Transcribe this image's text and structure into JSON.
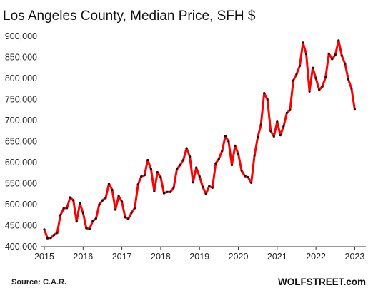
{
  "chart_data": {
    "type": "line",
    "title": "Los Angeles County, Median Price, SFH $",
    "source": "Source: C.A.R.",
    "brand": "WOLFSTREET.com",
    "xlabel": "",
    "ylabel": "",
    "ylim": [
      400000,
      900000
    ],
    "xlim": [
      2015,
      2023.25
    ],
    "y_ticks": [
      400000,
      450000,
      500000,
      550000,
      600000,
      650000,
      700000,
      750000,
      800000,
      850000,
      900000
    ],
    "y_tick_labels": [
      "400,000",
      "450,000",
      "500,000",
      "550,000",
      "600,000",
      "650,000",
      "700,000",
      "750,000",
      "800,000",
      "850,000",
      "900,000"
    ],
    "x_ticks": [
      2015,
      2016,
      2017,
      2018,
      2019,
      2020,
      2021,
      2022,
      2023
    ],
    "x_tick_labels": [
      "2015",
      "2016",
      "2017",
      "2018",
      "2019",
      "2020",
      "2021",
      "2022",
      "2023"
    ],
    "grid": false,
    "line_color": "#ff0000",
    "marker_color": "#111111",
    "series": [
      {
        "start": "2015-01",
        "frequency": "monthly",
        "values": [
          441000,
          420000,
          421000,
          428000,
          433000,
          475000,
          491000,
          492000,
          517000,
          510000,
          460000,
          503000,
          480000,
          444000,
          442000,
          461000,
          467000,
          500000,
          510000,
          516000,
          550000,
          535000,
          488000,
          520000,
          507000,
          470000,
          466000,
          481000,
          492000,
          548000,
          567000,
          570000,
          606000,
          585000,
          532000,
          577000,
          565000,
          527000,
          530000,
          530000,
          540000,
          584000,
          594000,
          606000,
          634000,
          614000,
          553000,
          588000,
          567000,
          542000,
          525000,
          544000,
          540000,
          598000,
          609000,
          628000,
          663000,
          650000,
          594000,
          640000,
          620000,
          581000,
          568000,
          565000,
          552000,
          617000,
          660000,
          690000,
          765000,
          750000,
          675000,
          662000,
          697000,
          665000,
          686000,
          718000,
          725000,
          795000,
          810000,
          830000,
          885000,
          858000,
          769000,
          825000,
          800000,
          773000,
          781000,
          803000,
          859000,
          846000,
          856000,
          890000,
          854000,
          835000,
          798000,
          776000,
          726000
        ]
      }
    ]
  }
}
